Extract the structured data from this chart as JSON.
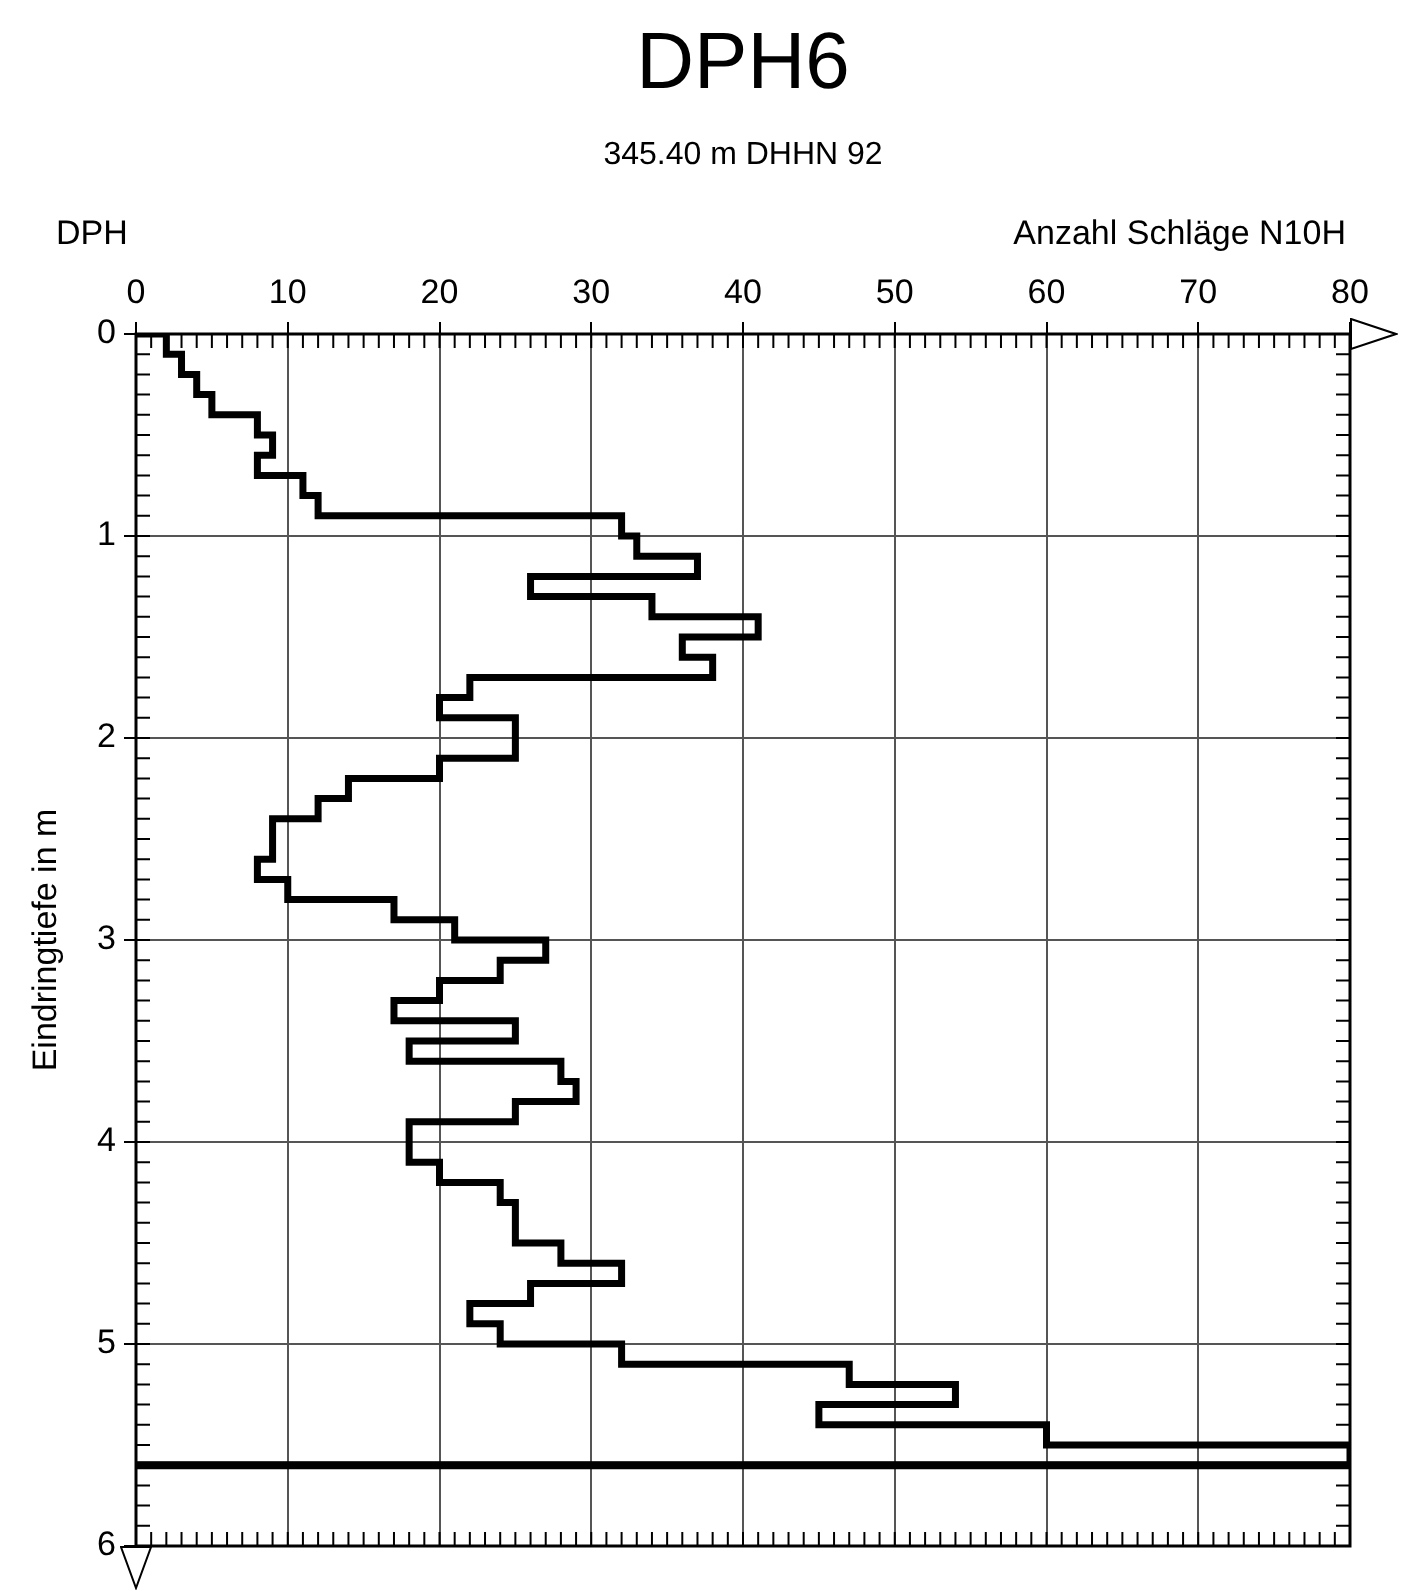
{
  "chart_data": {
    "type": "histogram",
    "orientation": "horizontal",
    "title": "DPH6",
    "subtitle": "345.40 m DHHN 92",
    "xlabel": "Anzahl Schläge N10H",
    "ylabel": "Eindringtiefe in m",
    "annotations": [
      "DPH"
    ],
    "bins": [
      0,
      0.1,
      0.2,
      0.3,
      0.4,
      0.5,
      0.6,
      0.7,
      0.8,
      0.9,
      1.0,
      1.1,
      1.2,
      1.3,
      1.4,
      1.5,
      1.6,
      1.7,
      1.8,
      1.9,
      2.0,
      2.1,
      2.2,
      2.3,
      2.4,
      2.5,
      2.6,
      2.7,
      2.8,
      2.9,
      3.0,
      3.1,
      3.2,
      3.3,
      3.4,
      3.5,
      3.6,
      3.7,
      3.8,
      3.9,
      4.0,
      4.1,
      4.2,
      4.3,
      4.4,
      4.5,
      4.6,
      4.7,
      4.8,
      4.9,
      5.0,
      5.1,
      5.2,
      5.3,
      5.4,
      5.5,
      5.6
    ],
    "values": [
      2,
      3,
      4,
      5,
      8,
      9,
      8,
      11,
      12,
      32,
      33,
      37,
      26,
      34,
      41,
      36,
      38,
      22,
      20,
      25,
      25,
      20,
      14,
      12,
      9,
      9,
      8,
      10,
      17,
      21,
      27,
      24,
      20,
      17,
      25,
      18,
      28,
      29,
      25,
      18,
      18,
      20,
      24,
      25,
      25,
      28,
      32,
      26,
      22,
      24,
      32,
      47,
      54,
      45,
      60,
      80
    ],
    "color": "#000000",
    "xlim": [
      0,
      80
    ],
    "xticks": [
      0,
      10,
      20,
      30,
      40,
      50,
      60,
      70,
      80
    ],
    "ylim": [
      6,
      0
    ],
    "yticks": [
      0,
      1,
      2,
      3,
      4,
      5,
      6
    ],
    "grid": true,
    "ref_lines": [
      {
        "axis": "y",
        "value": 5.6,
        "color": "#000000"
      }
    ]
  }
}
